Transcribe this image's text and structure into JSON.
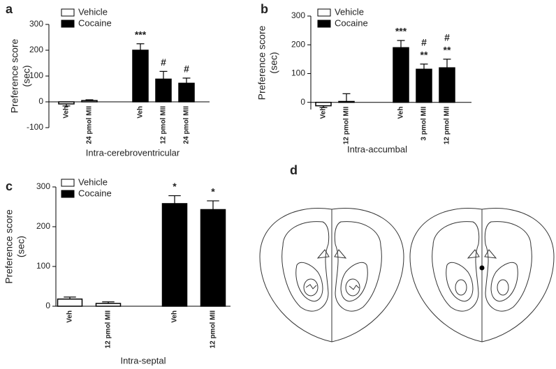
{
  "chart_data": [
    {
      "type": "bar",
      "panel": "a",
      "ylabel": [
        "Preference score",
        "(sec)"
      ],
      "xlabel": "Intra-cerebroventricular",
      "categories": [
        "Veh",
        "24 pmol MII",
        "Veh",
        "12 pmol MII",
        "24 pmol MII"
      ],
      "series": [
        {
          "name": "Vehicle",
          "color": "#ffffff",
          "values": [
            -8,
            5,
            null,
            null,
            null
          ],
          "errors": [
            8,
            3,
            null,
            null,
            null
          ]
        },
        {
          "name": "Cocaine",
          "color": "#000000",
          "values": [
            null,
            null,
            200,
            88,
            72
          ],
          "errors": [
            null,
            null,
            25,
            30,
            20
          ]
        }
      ],
      "annotations": [
        null,
        null,
        [
          "***"
        ],
        [
          "#"
        ],
        [
          "#"
        ]
      ],
      "ylim": [
        -100,
        300
      ],
      "yticks": [
        -100,
        0,
        100,
        200,
        300
      ]
    },
    {
      "type": "bar",
      "panel": "b",
      "ylabel": [
        "Preference score",
        "(sec)"
      ],
      "xlabel": "Intra-accumbal",
      "categories": [
        "Veh",
        "12 pmol MII",
        "Veh",
        "3 pmol MII",
        "12 pmol MII"
      ],
      "series": [
        {
          "name": "Vehicle",
          "color": "#ffffff",
          "values": [
            -12,
            3,
            null,
            null,
            null
          ],
          "errors": [
            6,
            27,
            null,
            null,
            null
          ]
        },
        {
          "name": "Cocaine",
          "color": "#000000",
          "values": [
            null,
            null,
            190,
            115,
            120
          ],
          "errors": [
            null,
            null,
            25,
            18,
            30
          ]
        }
      ],
      "annotations": [
        null,
        null,
        [
          "***"
        ],
        [
          "#",
          "**"
        ],
        [
          "#",
          "**"
        ]
      ],
      "ylim": [
        -25,
        300
      ],
      "yticks": [
        0,
        100,
        200,
        300
      ]
    },
    {
      "type": "bar",
      "panel": "c",
      "ylabel": [
        "Preference score",
        "(sec)"
      ],
      "xlabel": "Intra-septal",
      "categories": [
        "Veh",
        "12 pmol MII",
        "Veh",
        "12 pmol MII"
      ],
      "series": [
        {
          "name": "Vehicle",
          "color": "#ffffff",
          "values": [
            18,
            7,
            null,
            null
          ],
          "errors": [
            5,
            4,
            null,
            null
          ]
        },
        {
          "name": "Cocaine",
          "color": "#000000",
          "values": [
            null,
            null,
            258,
            243
          ],
          "errors": [
            null,
            null,
            20,
            22
          ]
        }
      ],
      "annotations": [
        null,
        null,
        [
          "*"
        ],
        [
          "*"
        ]
      ],
      "ylim": [
        0,
        300
      ],
      "yticks": [
        0,
        100,
        200,
        300
      ]
    }
  ],
  "diagram": {
    "panel": "d"
  }
}
